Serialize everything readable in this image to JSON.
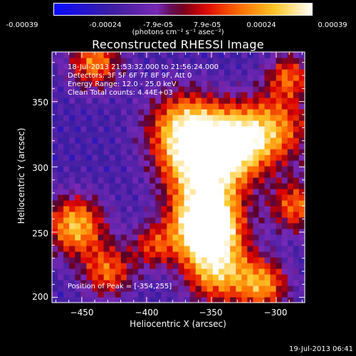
{
  "colorbar": {
    "ticks": [
      "-0.00039",
      "-0.00024",
      "-7.9e-05",
      "7.9e-05",
      "0.00024",
      "0.00039"
    ],
    "unit": "(photons cm⁻² s⁻¹ asec⁻²)",
    "min": -0.00039,
    "max": 0.00039
  },
  "chart_data": {
    "type": "heatmap",
    "title": "Reconstructed RHESSI Image",
    "xlabel": "Heliocentric X (arcsec)",
    "ylabel": "Heliocentric Y (arcsec)",
    "xlim": [
      -473,
      -278
    ],
    "ylim": [
      196,
      388
    ],
    "xticks": [
      -450,
      -400,
      -350,
      -300
    ],
    "yticks": [
      200,
      250,
      300,
      350
    ],
    "xtick_labels": [
      "−450",
      "−400",
      "−350",
      "−300"
    ],
    "ytick_labels": [
      "200",
      "250",
      "300",
      "350"
    ],
    "colormap": "hot-blue (blue→purple→red→orange→yellow→white)",
    "peak": [
      -354,
      255
    ],
    "annotations": {
      "time": "18-Jul-2013 21:53:32.000 to 21:56:24.000",
      "detectors": "Detectors: 3F 5F 6F 7F 8F 9F, Att 0",
      "energy": "Energy Range: 12.0 - 25.0 keV",
      "method": "Clean     Total counts: 4.44E+03",
      "peak_text": "Position of Peak = [-354,255]"
    }
  },
  "footer": "19-Jul-2013 06:41"
}
